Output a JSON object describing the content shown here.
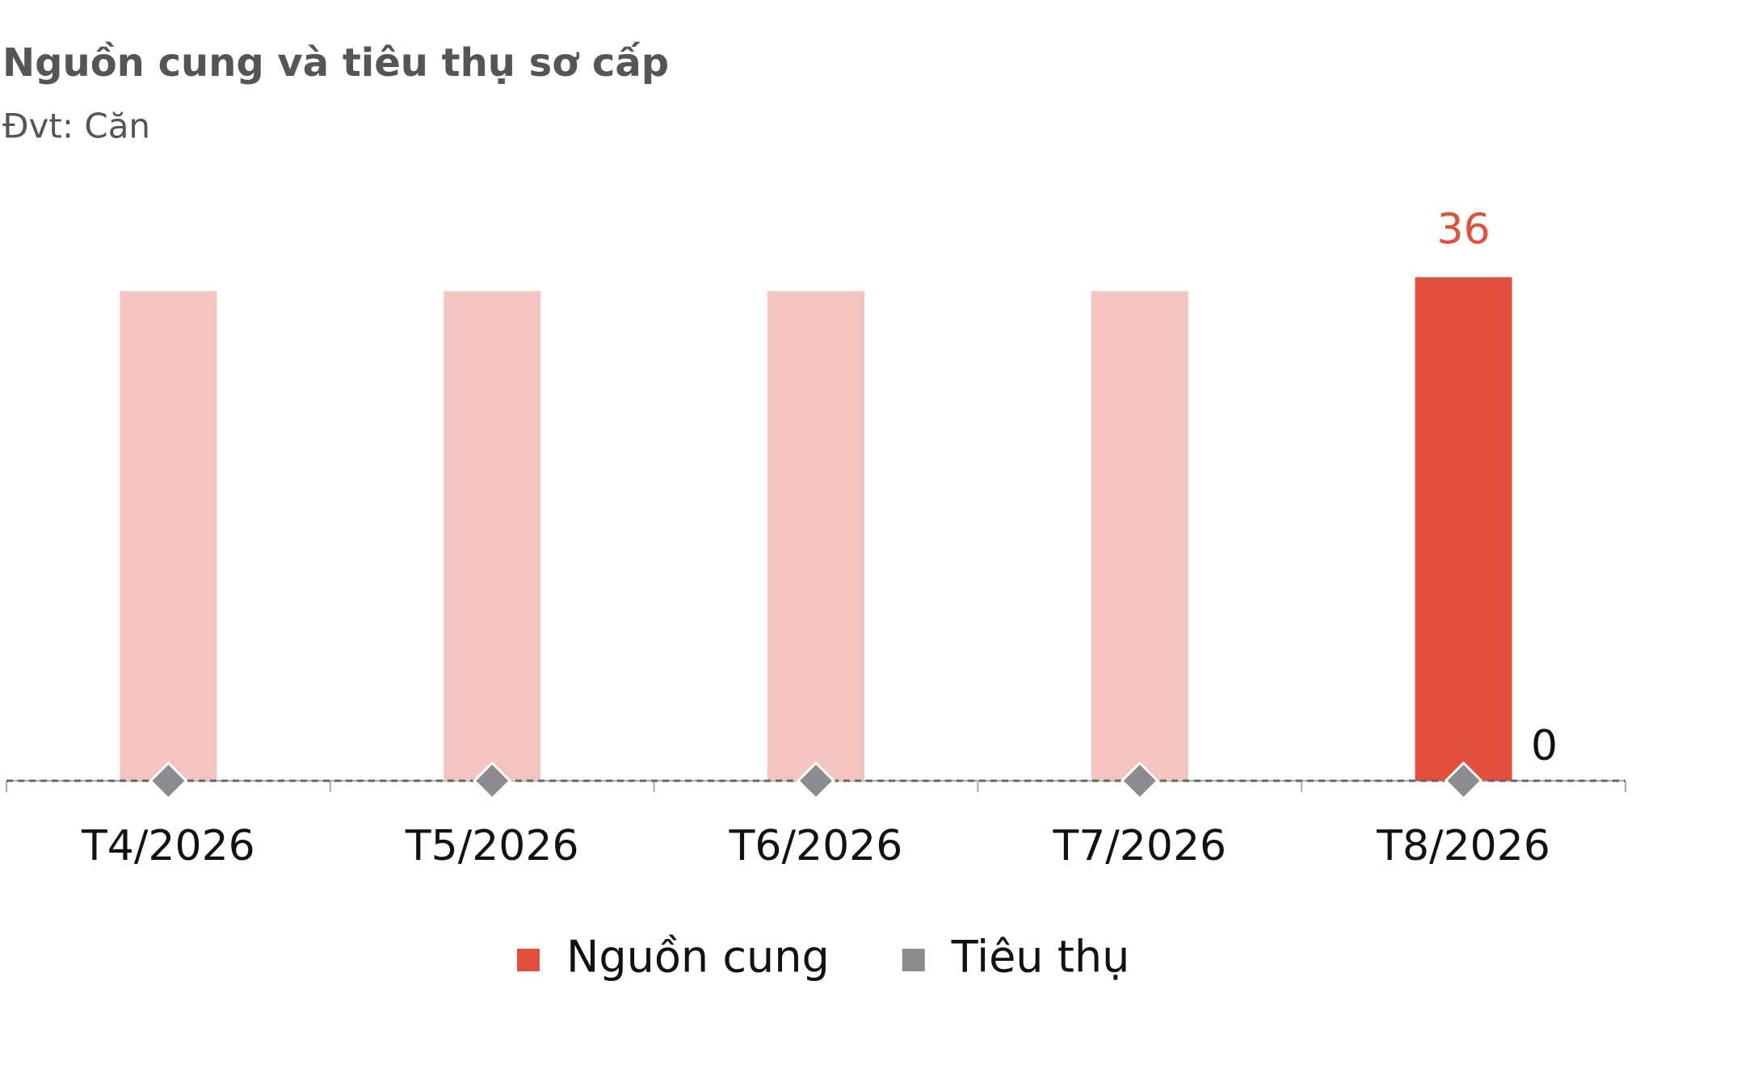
{
  "chart_data": {
    "type": "bar_line",
    "title": "Nguồn cung và tiêu thụ sơ cấp",
    "subtitle": "Đvt: Căn",
    "categories": [
      "T4/2026",
      "T5/2026",
      "T6/2026",
      "T7/2026",
      "T8/2026"
    ],
    "series": [
      {
        "name": "Nguồn cung",
        "type": "bar",
        "color": "#e0503c",
        "faded_color": "#f4c4c0",
        "values": [
          35,
          35,
          35,
          35,
          36
        ]
      },
      {
        "name": "Tiêu thụ",
        "type": "line",
        "color": "#8c8c90",
        "values": [
          0,
          0,
          0,
          0,
          0
        ]
      }
    ],
    "ylim": [
      0,
      40
    ],
    "labels_on": "last",
    "legend": "bottom"
  }
}
